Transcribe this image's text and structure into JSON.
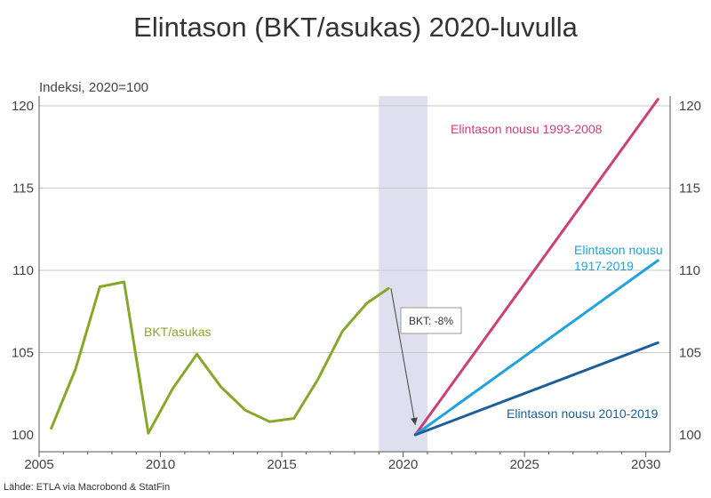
{
  "chart_data": {
    "type": "line",
    "title": "Elintason (BKT/asukas) 2020-luvulla",
    "unit_label": "Indeksi, 2020=100",
    "source": "Lähde: ETLA via Macrobond & StatFin",
    "xlim": [
      2005,
      2031
    ],
    "ylim": [
      99,
      121
    ],
    "x_ticks": [
      "2005",
      "2010",
      "2015",
      "2020",
      "2025",
      "2030"
    ],
    "y_ticks": [
      "100",
      "105",
      "110",
      "115",
      "120"
    ],
    "shaded_region": [
      2019,
      2021
    ],
    "annotation": {
      "text": "BKT: -8%",
      "from": [
        2019.5,
        108.9
      ],
      "to": [
        2020.5,
        100.6
      ]
    },
    "series": [
      {
        "name": "BKT/asukas",
        "color": "#86a829",
        "x": [
          2005.5,
          2006.5,
          2007.5,
          2008.5,
          2009.5,
          2010.5,
          2011.5,
          2012.5,
          2013.5,
          2014.5,
          2015.5,
          2016.5,
          2017.5,
          2018.5,
          2019.4
        ],
        "y": [
          100.4,
          104.0,
          109.0,
          109.3,
          100.1,
          102.8,
          104.9,
          102.9,
          101.5,
          100.8,
          101.0,
          103.4,
          106.3,
          108.0,
          108.9
        ]
      },
      {
        "name": "Elintason nousu 1993-2008",
        "color": "#cc3f79",
        "x": [
          2020.5,
          2030.5
        ],
        "y": [
          100,
          120.4
        ]
      },
      {
        "name": "Elintason nousu 1917-2019",
        "color": "#1fa3dc",
        "x": [
          2020.5,
          2030.5
        ],
        "y": [
          100,
          110.6
        ]
      },
      {
        "name": "Elintason nousu 2010-2019",
        "color": "#1b5f9c",
        "x": [
          2020.5,
          2030.5
        ],
        "y": [
          100,
          105.6
        ]
      }
    ]
  }
}
